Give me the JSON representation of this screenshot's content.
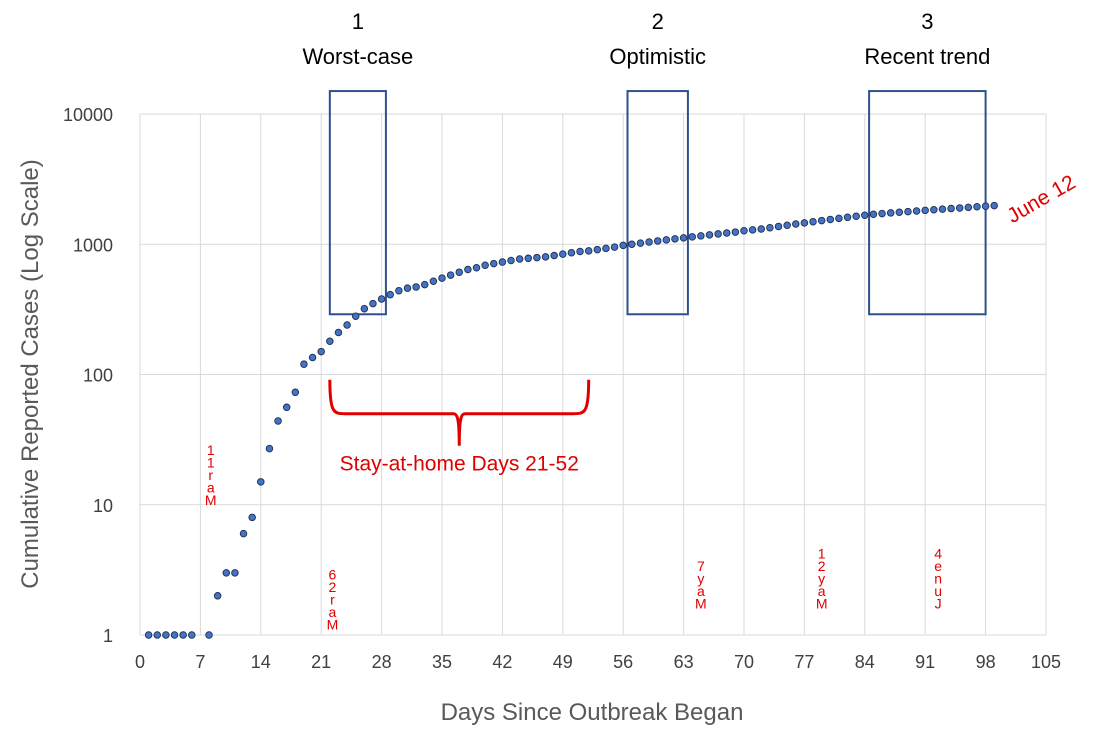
{
  "chart_data": {
    "type": "scatter",
    "xlabel": "Days Since Outbreak Began",
    "ylabel": "Cumulative Reported Cases (Log Scale)",
    "x_scale": "linear",
    "y_scale": "log",
    "xlim": [
      0,
      105
    ],
    "ylim": [
      1,
      10000
    ],
    "x_ticks": [
      0,
      7,
      14,
      21,
      28,
      35,
      42,
      49,
      56,
      63,
      70,
      77,
      84,
      91,
      98,
      105
    ],
    "y_ticks": [
      1,
      10,
      100,
      1000,
      10000
    ],
    "grid": true,
    "marker_color": "#4472c4",
    "marker_edge_color": "#1f2f4f",
    "annotation_color": "#e00000",
    "box_color": "#2f4f8f",
    "series": [
      {
        "values": [
          [
            1,
            1
          ],
          [
            2,
            1
          ],
          [
            3,
            1
          ],
          [
            4,
            1
          ],
          [
            5,
            1
          ],
          [
            6,
            1
          ],
          [
            8,
            1
          ],
          [
            9,
            2
          ],
          [
            10,
            3
          ],
          [
            11,
            3
          ],
          [
            12,
            6
          ],
          [
            13,
            8
          ],
          [
            14,
            15
          ],
          [
            15,
            27
          ],
          [
            16,
            44
          ],
          [
            17,
            56
          ],
          [
            18,
            73
          ],
          [
            19,
            120
          ],
          [
            20,
            135
          ],
          [
            21,
            150
          ],
          [
            22,
            180
          ],
          [
            23,
            210
          ],
          [
            24,
            240
          ],
          [
            25,
            280
          ],
          [
            26,
            320
          ],
          [
            27,
            350
          ],
          [
            28,
            380
          ],
          [
            29,
            410
          ],
          [
            30,
            440
          ],
          [
            31,
            460
          ],
          [
            32,
            470
          ],
          [
            33,
            490
          ],
          [
            34,
            520
          ],
          [
            35,
            550
          ],
          [
            36,
            580
          ],
          [
            37,
            610
          ],
          [
            38,
            640
          ],
          [
            39,
            660
          ],
          [
            40,
            690
          ],
          [
            41,
            710
          ],
          [
            42,
            730
          ],
          [
            43,
            750
          ],
          [
            44,
            770
          ],
          [
            45,
            780
          ],
          [
            46,
            790
          ],
          [
            47,
            800
          ],
          [
            48,
            820
          ],
          [
            49,
            840
          ],
          [
            50,
            860
          ],
          [
            51,
            880
          ],
          [
            52,
            890
          ],
          [
            53,
            910
          ],
          [
            54,
            930
          ],
          [
            55,
            950
          ],
          [
            56,
            980
          ],
          [
            57,
            1000
          ],
          [
            58,
            1020
          ],
          [
            59,
            1040
          ],
          [
            60,
            1060
          ],
          [
            61,
            1080
          ],
          [
            62,
            1100
          ],
          [
            63,
            1120
          ],
          [
            64,
            1140
          ],
          [
            65,
            1160
          ],
          [
            66,
            1180
          ],
          [
            67,
            1200
          ],
          [
            68,
            1220
          ],
          [
            69,
            1240
          ],
          [
            70,
            1270
          ],
          [
            71,
            1290
          ],
          [
            72,
            1310
          ],
          [
            73,
            1340
          ],
          [
            74,
            1370
          ],
          [
            75,
            1400
          ],
          [
            76,
            1430
          ],
          [
            77,
            1460
          ],
          [
            78,
            1490
          ],
          [
            79,
            1520
          ],
          [
            80,
            1550
          ],
          [
            81,
            1580
          ],
          [
            82,
            1610
          ],
          [
            83,
            1640
          ],
          [
            84,
            1670
          ],
          [
            85,
            1700
          ],
          [
            86,
            1720
          ],
          [
            87,
            1740
          ],
          [
            88,
            1760
          ],
          [
            89,
            1780
          ],
          [
            90,
            1800
          ],
          [
            91,
            1820
          ],
          [
            92,
            1840
          ],
          [
            93,
            1860
          ],
          [
            94,
            1880
          ],
          [
            95,
            1900
          ],
          [
            96,
            1920
          ],
          [
            97,
            1940
          ],
          [
            98,
            1960
          ],
          [
            99,
            1980
          ]
        ]
      }
    ],
    "scenario_boxes": [
      {
        "number": "1",
        "label": "Worst-case",
        "x_range": [
          22,
          28.5
        ],
        "y_range": [
          290,
          15000
        ]
      },
      {
        "number": "2",
        "label": "Optimistic",
        "x_range": [
          56.5,
          63.5
        ],
        "y_range": [
          290,
          15000
        ]
      },
      {
        "number": "3",
        "label": "Recent trend",
        "x_range": [
          84.5,
          98
        ],
        "y_range": [
          290,
          15000
        ]
      }
    ],
    "bracket": {
      "x_range": [
        22,
        52
      ],
      "y": 85,
      "label": "Stay-at-home Days 21-52"
    },
    "endpoint_label": "June 12",
    "date_labels": [
      {
        "text": "Mar 11",
        "x": 8.2,
        "y": 10
      },
      {
        "text": "Mar 26",
        "x": 22.3,
        "y": 1.1
      },
      {
        "text": "May 7",
        "x": 65,
        "y": 1.6
      },
      {
        "text": "May 21",
        "x": 79,
        "y": 1.6
      },
      {
        "text": "June 4",
        "x": 92.5,
        "y": 1.6
      }
    ]
  }
}
